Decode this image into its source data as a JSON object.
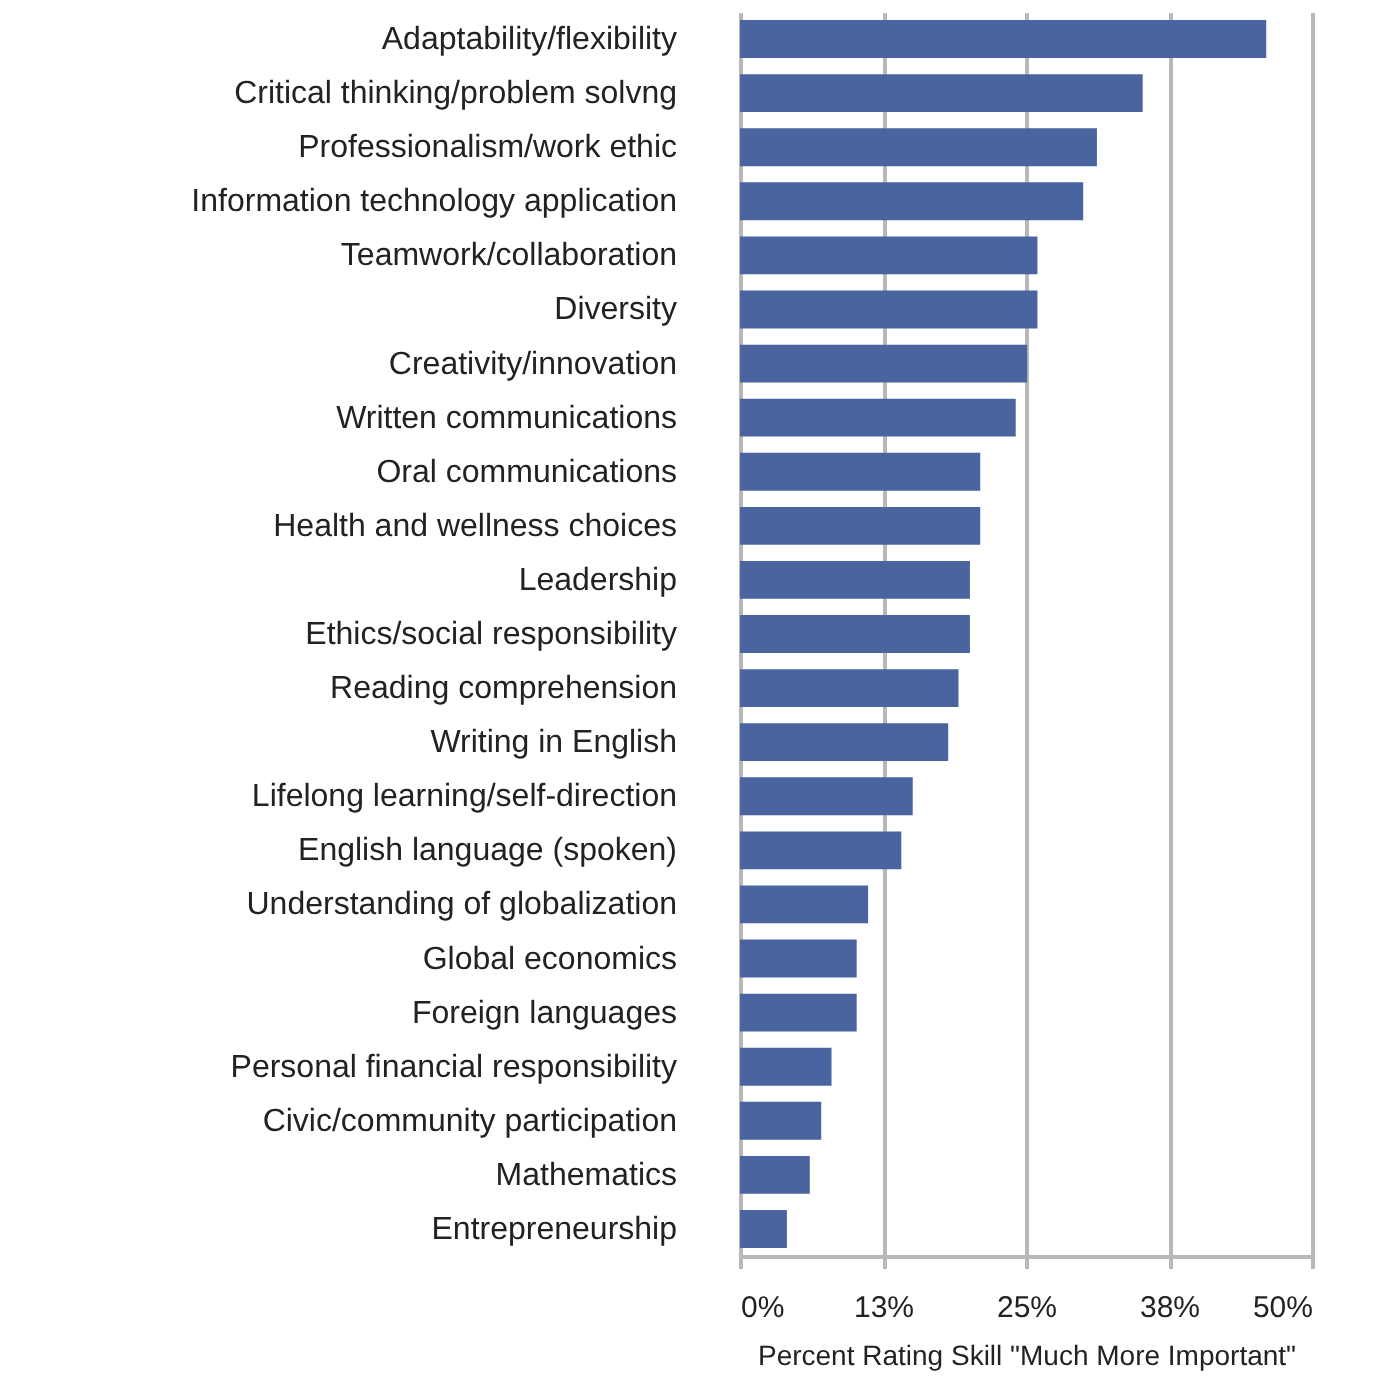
{
  "chart_data": {
    "type": "bar",
    "orientation": "horizontal",
    "xlabel": "Percent Rating Skill \"Much More Important\"",
    "categories": [
      "Adaptability/flexibility",
      "Critical thinking/problem solvng",
      "Professionalism/work ethic",
      "Information technology application",
      "Teamwork/collaboration",
      "Diversity",
      "Creativity/innovation",
      "Written communications",
      "Oral communications",
      "Health and wellness choices",
      "Leadership",
      "Ethics/social responsibility",
      "Reading comprehension",
      "Writing in English",
      "Lifelong learning/self-direction",
      "English language (spoken)",
      "Understanding of globalization",
      "Global economics",
      "Foreign languages",
      "Personal financial responsibility",
      "Civic/community participation",
      "Mathematics",
      "Entrepreneurship"
    ],
    "values": [
      46.0,
      35.2,
      31.2,
      30.0,
      26.0,
      26.0,
      25.1,
      24.1,
      21.0,
      21.0,
      20.1,
      20.1,
      19.1,
      18.2,
      15.1,
      14.1,
      11.2,
      10.2,
      10.2,
      8.0,
      7.1,
      6.1,
      4.1
    ],
    "color": "#4a64a0",
    "xlim": [
      0,
      50
    ],
    "xticks": [
      {
        "value": 0,
        "label": "0%"
      },
      {
        "value": 12.5,
        "label": "13%"
      },
      {
        "value": 25,
        "label": "25%"
      },
      {
        "value": 37.5,
        "label": "38%"
      },
      {
        "value": 50,
        "label": "50%"
      }
    ],
    "grid": "x"
  }
}
